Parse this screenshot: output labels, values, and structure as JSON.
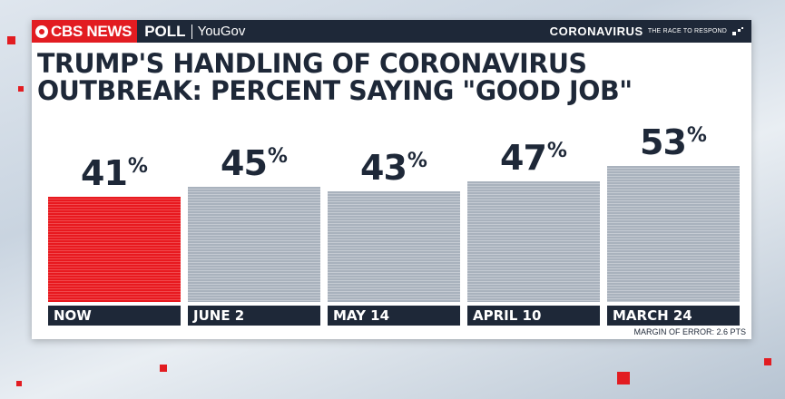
{
  "header": {
    "brand_name": "CBS NEWS",
    "brand_poll": "POLL",
    "brand_partner": "YouGov",
    "topic": "CORONAVIRUS",
    "topic_sub": "THE RACE TO RESPOND"
  },
  "colors": {
    "navy": "#1e2838",
    "brand_red": "#e21c21",
    "bar_gray": "#a9b2bd",
    "bar_highlight": "#e8191f"
  },
  "footer": {
    "margin_of_error": "MARGIN OF ERROR: 2.6 PTS"
  },
  "chart_data": {
    "type": "bar",
    "title": "TRUMP'S HANDLING OF CORONAVIRUS OUTBREAK: PERCENT SAYING \"GOOD JOB\"",
    "categories": [
      "NOW",
      "JUNE 2",
      "MAY 14",
      "APRIL 10",
      "MARCH 24"
    ],
    "values": [
      41,
      45,
      43,
      47,
      53
    ],
    "value_labels": [
      "41",
      "45",
      "43",
      "47",
      "53"
    ],
    "value_suffix": "%",
    "highlight_index": 0,
    "ylim": [
      0,
      60
    ],
    "grid": false,
    "legend": "none"
  }
}
